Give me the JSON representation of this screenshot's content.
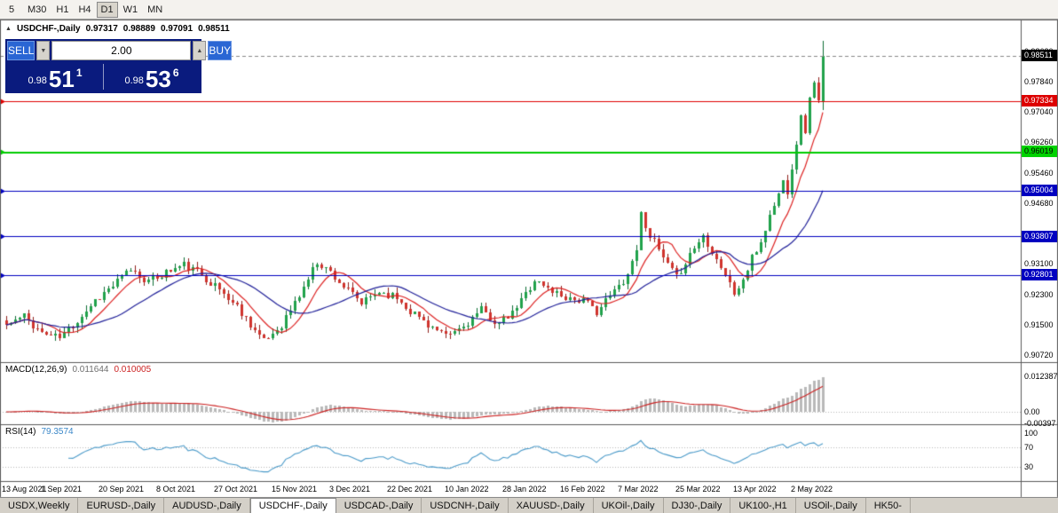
{
  "toolbar": {
    "timeframes": [
      "5",
      "M30",
      "H1",
      "H4",
      "D1",
      "W1",
      "MN"
    ],
    "active": "D1"
  },
  "chart": {
    "collapse_icon": "▲",
    "title": "USDCHF-,Daily",
    "ohlc": {
      "open": "0.97317",
      "high": "0.98889",
      "low": "0.97091",
      "close": "0.98511"
    }
  },
  "trade_panel": {
    "sell_label": "SELL",
    "buy_label": "BUY",
    "lot": "2.00",
    "spin_down_icon": "▼",
    "spin_up_icon": "▲",
    "sell_price": {
      "prefix": "0.98",
      "big": "51",
      "sup": "1"
    },
    "buy_price": {
      "prefix": "0.98",
      "big": "53",
      "sup": "6"
    }
  },
  "price_axis": {
    "ticks": [
      "0.98620",
      "0.97840",
      "0.97040",
      "0.96260",
      "0.95460",
      "0.94680",
      "0.93100",
      "0.92300",
      "0.91500",
      "0.90720"
    ],
    "line_labels": [
      {
        "value": "0.98511",
        "bg": "#000000",
        "fg": "#ffffff"
      },
      {
        "value": "0.97334",
        "bg": "#dd0000",
        "fg": "#ffffff"
      },
      {
        "value": "0.96019",
        "bg": "#00d200",
        "fg": "#000000"
      },
      {
        "value": "0.95004",
        "bg": "#0000c0",
        "fg": "#ffffff"
      },
      {
        "value": "0.93807",
        "bg": "#0000c0",
        "fg": "#ffffff"
      },
      {
        "value": "0.92801",
        "bg": "#0000c0",
        "fg": "#ffffff"
      }
    ]
  },
  "macd": {
    "label": "MACD(12,26,9)",
    "value_main": "0.011644",
    "value_signal": "0.010005",
    "axis": [
      "0.012387",
      "0.00",
      "-0.00397"
    ]
  },
  "rsi": {
    "label": "RSI(14)",
    "value": "79.3574",
    "axis": [
      "100",
      "70",
      "30"
    ]
  },
  "dates": [
    "13 Aug 2021",
    "1 Sep 2021",
    "20 Sep 2021",
    "8 Oct 2021",
    "27 Oct 2021",
    "15 Nov 2021",
    "3 Dec 2021",
    "22 Dec 2021",
    "10 Jan 2022",
    "28 Jan 2022",
    "16 Feb 2022",
    "7 Mar 2022",
    "25 Mar 2022",
    "13 Apr 2022",
    "2 May 2022"
  ],
  "tabs": {
    "items": [
      "USDX,Weekly",
      "EURUSD-,Daily",
      "AUDUSD-,Daily",
      "USDCHF-,Daily",
      "USDCAD-,Daily",
      "USDCNH-,Daily",
      "XAUUSD-,Daily",
      "UKOil-,Daily",
      "DJ30-,Daily",
      "UK100-,H1",
      "USOil-,Daily",
      "HK50-"
    ],
    "active": "USDCHF-,Daily"
  },
  "chart_data": {
    "type": "candlestick",
    "symbol": "USDCHF-",
    "period": "Daily",
    "bar_count": 185,
    "y_axis": {
      "min": 0.9072,
      "max": 0.9862
    },
    "date_tick_indices": [
      0,
      13,
      26,
      39,
      52,
      65,
      78,
      91,
      104,
      117,
      130,
      143,
      156,
      169,
      182
    ],
    "close_keypoints": [
      [
        0,
        0.915
      ],
      [
        4,
        0.9172
      ],
      [
        8,
        0.913
      ],
      [
        12,
        0.9118
      ],
      [
        16,
        0.9162
      ],
      [
        20,
        0.9215
      ],
      [
        24,
        0.9252
      ],
      [
        28,
        0.9296
      ],
      [
        32,
        0.9262
      ],
      [
        36,
        0.9288
      ],
      [
        40,
        0.9306
      ],
      [
        44,
        0.9282
      ],
      [
        48,
        0.9242
      ],
      [
        52,
        0.9198
      ],
      [
        56,
        0.9138
      ],
      [
        58,
        0.9106
      ],
      [
        62,
        0.9152
      ],
      [
        66,
        0.9226
      ],
      [
        70,
        0.9316
      ],
      [
        73,
        0.9288
      ],
      [
        77,
        0.9238
      ],
      [
        80,
        0.9206
      ],
      [
        84,
        0.9238
      ],
      [
        88,
        0.9222
      ],
      [
        91,
        0.9188
      ],
      [
        95,
        0.9152
      ],
      [
        99,
        0.9118
      ],
      [
        103,
        0.9146
      ],
      [
        107,
        0.9188
      ],
      [
        111,
        0.9152
      ],
      [
        114,
        0.9178
      ],
      [
        117,
        0.9232
      ],
      [
        119,
        0.9268
      ],
      [
        122,
        0.9244
      ],
      [
        126,
        0.9224
      ],
      [
        130,
        0.9212
      ],
      [
        133,
        0.9186
      ],
      [
        137,
        0.9238
      ],
      [
        140,
        0.9282
      ],
      [
        142,
        0.9352
      ],
      [
        143,
        0.9436
      ],
      [
        145,
        0.9386
      ],
      [
        148,
        0.9322
      ],
      [
        151,
        0.9272
      ],
      [
        154,
        0.9336
      ],
      [
        157,
        0.9382
      ],
      [
        159,
        0.9344
      ],
      [
        162,
        0.9282
      ],
      [
        164,
        0.9232
      ],
      [
        166,
        0.9266
      ],
      [
        168,
        0.9322
      ],
      [
        170,
        0.9366
      ],
      [
        172,
        0.9434
      ],
      [
        174,
        0.9492
      ],
      [
        175,
        0.9524
      ],
      [
        176,
        0.9502
      ],
      [
        177,
        0.9564
      ],
      [
        178,
        0.9626
      ],
      [
        179,
        0.9688
      ],
      [
        180,
        0.9658
      ],
      [
        181,
        0.9734
      ],
      [
        182,
        0.9788
      ],
      [
        183,
        0.9732
      ],
      [
        184,
        0.98511
      ]
    ],
    "last_candle": {
      "o": 0.97317,
      "h": 0.98889,
      "l": 0.97091,
      "c": 0.98511
    },
    "levels": [
      {
        "price": 0.97334,
        "color": "#e00000",
        "width": 1
      },
      {
        "price": 0.96019,
        "color": "#00cc00",
        "width": 2
      },
      {
        "price": 0.95004,
        "color": "#0000c0",
        "width": 1
      },
      {
        "price": 0.93807,
        "color": "#0000c0",
        "width": 1
      },
      {
        "price": 0.92801,
        "color": "#0000c0",
        "width": 1
      }
    ],
    "indicators": {
      "macd": {
        "fast": 12,
        "slow": 26,
        "signal": 9,
        "value": 0.011644,
        "signal_value": 0.010005
      },
      "rsi": {
        "period": 14,
        "value": 79.3574
      }
    },
    "colors": {
      "bull": "#21a24b",
      "bear": "#d0342e",
      "bull_wick": "#0e6e33",
      "bear_wick": "#8f201c",
      "ma_fast": "#dd2222",
      "ma_slow": "#22229a",
      "macd_hist": "#b9b9b9",
      "macd_signal": "#cc2222",
      "rsi_line": "#4a9ac9"
    }
  }
}
